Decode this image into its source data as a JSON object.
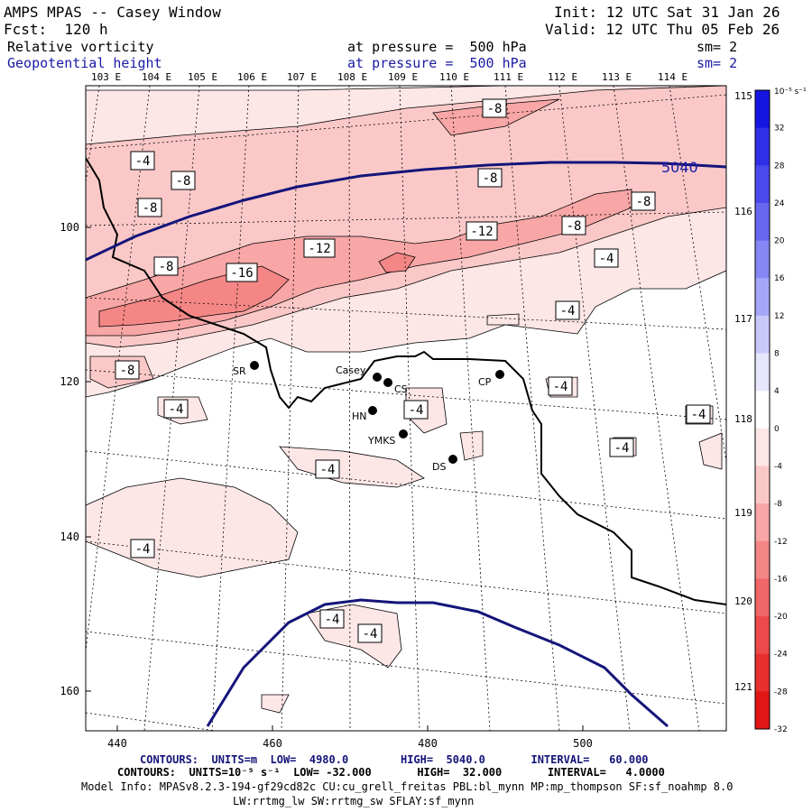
{
  "header": {
    "title": "AMPS MPAS -- Casey Window",
    "fcst": "Fcst:  120 h",
    "init": "Init: 12 UTC Sat 31 Jan 26",
    "valid": "Valid: 12 UTC Thu 05 Feb 26",
    "field1_name": "Relative vorticity",
    "field1_level": "at pressure =  500 hPa",
    "field1_sm": "sm= 2",
    "field2_name": "Geopotential height",
    "field2_level": "at pressure =  500 hPa",
    "field2_sm": "sm= 2"
  },
  "top_lon_labels": [
    "103 E",
    "104 E",
    "105 E",
    "106 E",
    "107 E",
    "108 E",
    "109 E",
    "110 E",
    "111 E",
    "112 E",
    "113 E",
    "114 E"
  ],
  "right_lat_labels": [
    "115 E",
    "116 E",
    "117 E",
    "118 E",
    "119 E",
    "120 E",
    "121 E"
  ],
  "x_ticks": [
    "440",
    "460",
    "480",
    "500"
  ],
  "y_ticks": [
    "100",
    "120",
    "140",
    "160"
  ],
  "colorbar": {
    "unit": "10⁻⁵ s⁻¹",
    "labels": [
      "32",
      "28",
      "24",
      "20",
      "16",
      "12",
      "8",
      "4",
      "0",
      "-4",
      "-8",
      "-12",
      "-16",
      "-20",
      "-24",
      "-28",
      "-32"
    ],
    "colors": [
      "#1515e0",
      "#2f2fe6",
      "#4a4aec",
      "#6767f0",
      "#8686f4",
      "#a6a6f8",
      "#c8c8fb",
      "#e6e6fd",
      "#ffffff",
      "#fde6e6",
      "#fbc8c8",
      "#f8a6a6",
      "#f48686",
      "#f06767",
      "#ec4a4a",
      "#e62f2f",
      "#e01515"
    ]
  },
  "vorticity_labels": [
    "-8",
    "-4",
    "-8",
    "-8",
    "-8",
    "-8",
    "-12",
    "-12",
    "-16",
    "-8",
    "-8",
    "-4",
    "-4",
    "-4",
    "-8",
    "-4",
    "-4",
    "-4",
    "-4",
    "-4",
    "-4",
    "-4",
    "-4"
  ],
  "height_label": "5040",
  "stations": [
    "SR",
    "Casey",
    "CS",
    "HN",
    "YMKS",
    "CP",
    "DS"
  ],
  "footer": {
    "line1": "CONTOURS:  UNITS=m  LOW=  4980.0        HIGH=  5040.0       INTERVAL=   60.000",
    "line2": "CONTOURS:  UNITS=10⁻⁵ s⁻¹  LOW= -32.000       HIGH=  32.000       INTERVAL=   4.0000",
    "line3": "Model Info: MPASv8.2.3-194-gf29cd82c CU:cu_grell_freitas PBL:bl_mynn MP:mp_thompson SF:sf_noahmp 8.0",
    "line4": "LW:rrtmg_lw SW:rrtmg_sw SFLAY:sf_mynn"
  }
}
